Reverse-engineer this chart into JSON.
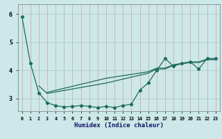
{
  "title": "",
  "xlabel": "Humidex (Indice chaleur)",
  "bg_color": "#cce8e8",
  "grid_color": "#aac8c8",
  "line_color": "#1e6b5a",
  "xlim": [
    -0.5,
    23.5
  ],
  "ylim": [
    2.55,
    6.35
  ],
  "xticks": [
    0,
    1,
    2,
    3,
    4,
    5,
    6,
    7,
    8,
    9,
    10,
    11,
    12,
    13,
    14,
    15,
    16,
    17,
    18,
    19,
    20,
    21,
    22,
    23
  ],
  "yticks": [
    3,
    4,
    5,
    6
  ],
  "line1_x": [
    0,
    1,
    2,
    3,
    4,
    5,
    6,
    7,
    8,
    9,
    10,
    11,
    12,
    13,
    14,
    15,
    16,
    17,
    18,
    19,
    20,
    21,
    22,
    23
  ],
  "line1_y": [
    5.9,
    4.25,
    3.2,
    2.85,
    2.75,
    2.7,
    2.72,
    2.75,
    2.72,
    2.68,
    2.72,
    2.68,
    2.75,
    2.8,
    3.3,
    3.55,
    4.0,
    4.42,
    4.15,
    4.25,
    4.3,
    4.05,
    4.42,
    4.42
  ],
  "line2_x": [
    2,
    3,
    10,
    15,
    16,
    17,
    18,
    19,
    20,
    21,
    22,
    23
  ],
  "line2_y": [
    3.45,
    3.18,
    3.55,
    3.9,
    4.05,
    4.05,
    4.18,
    4.23,
    4.28,
    4.28,
    4.38,
    4.38
  ],
  "line3_x": [
    3,
    10,
    15,
    16,
    17,
    18,
    19,
    20,
    21,
    22,
    23
  ],
  "line3_y": [
    3.22,
    3.72,
    3.95,
    4.08,
    4.08,
    4.2,
    4.25,
    4.3,
    4.3,
    4.4,
    4.4
  ]
}
